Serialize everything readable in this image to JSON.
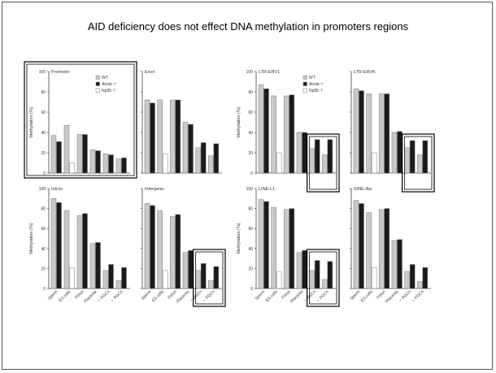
{
  "slide": {
    "title": "AID deficiency does not effect DNA methylation in promoters regions"
  },
  "figure": {
    "ylabel": "Methylation (%)",
    "y_ticks": [
      "0",
      "20",
      "40",
      "60",
      "80",
      "100"
    ],
    "categories": [
      "Sperm",
      "ES cells",
      "Fetus",
      "Placenta",
      "♂ PGCs",
      "♀ PGCs"
    ],
    "legend_wt": "WT",
    "legend_aicda": "Aicda⁻/⁻",
    "legend_np95": "Np95⁻/⁻",
    "colors": {
      "wt": "#c9c9c9",
      "aicda": "#1a1a1a",
      "np95": "#ffffff",
      "outline": "#777777",
      "highlight": "#000000"
    }
  },
  "chart_data": [
    {
      "type": "bar",
      "title": "Promoter",
      "categories": [
        "Sperm",
        "ES cells",
        "Fetus",
        "Placenta",
        "♂ PGCs",
        "♀ PGCs"
      ],
      "ylim": [
        0,
        100
      ],
      "ylabel": "Methylation (%)",
      "series": [
        {
          "name": "WT",
          "values": [
            37,
            47,
            38,
            23,
            19,
            14
          ]
        },
        {
          "name": "Aicda⁻/⁻",
          "values": [
            31,
            null,
            38,
            22,
            18,
            15
          ]
        },
        {
          "name": "Np95⁻/⁻",
          "values": [
            null,
            10,
            null,
            null,
            null,
            null
          ]
        }
      ],
      "show_legend": true,
      "highlight": "panel"
    },
    {
      "type": "bar",
      "title": "Exon",
      "categories": [
        "Sperm",
        "ES cells",
        "Fetus",
        "Placenta",
        "♂ PGCs",
        "♀ PGCs"
      ],
      "ylim": [
        0,
        100
      ],
      "series": [
        {
          "name": "WT",
          "values": [
            72,
            72,
            72,
            50,
            25,
            17
          ]
        },
        {
          "name": "Aicda⁻/⁻",
          "values": [
            69,
            null,
            72,
            48,
            30,
            29
          ]
        },
        {
          "name": "Np95⁻/⁻",
          "values": [
            null,
            19,
            null,
            null,
            null,
            null
          ]
        }
      ],
      "show_legend": false,
      "highlight": "none"
    },
    {
      "type": "bar",
      "title": "LTR-ERV1",
      "categories": [
        "Sperm",
        "ES cells",
        "Fetus",
        "Placenta",
        "♂ PGCs",
        "♀ PGCs"
      ],
      "ylim": [
        0,
        100
      ],
      "ylabel": "Methylation (%)",
      "series": [
        {
          "name": "WT",
          "values": [
            87,
            76,
            76,
            40,
            24,
            18
          ]
        },
        {
          "name": "Aicda⁻/⁻",
          "values": [
            83,
            null,
            77,
            40,
            33,
            33
          ]
        },
        {
          "name": "Np95⁻/⁻",
          "values": [
            null,
            20,
            null,
            null,
            null,
            null
          ]
        }
      ],
      "show_legend": true,
      "highlight": "pgcs"
    },
    {
      "type": "bar",
      "title": "LTR-ERVK",
      "categories": [
        "Sperm",
        "ES cells",
        "Fetus",
        "Placenta",
        "♂ PGCs",
        "♀ PGCs"
      ],
      "ylim": [
        0,
        100
      ],
      "series": [
        {
          "name": "WT",
          "values": [
            83,
            78,
            78,
            40,
            25,
            18
          ]
        },
        {
          "name": "Aicda⁻/⁻",
          "values": [
            81,
            null,
            78,
            41,
            32,
            32
          ]
        },
        {
          "name": "Np95⁻/⁻",
          "values": [
            null,
            20,
            null,
            null,
            null,
            null
          ]
        }
      ],
      "show_legend": false,
      "highlight": "pgcs"
    },
    {
      "type": "bar",
      "title": "Intron",
      "categories": [
        "Sperm",
        "ES cells",
        "Fetus",
        "Placenta",
        "♂ PGCs",
        "♀ PGCs"
      ],
      "ylim": [
        0,
        100
      ],
      "ylabel": "Methylation (%)",
      "series": [
        {
          "name": "WT",
          "values": [
            90,
            78,
            73,
            45,
            18,
            8
          ]
        },
        {
          "name": "Aicda⁻/⁻",
          "values": [
            86,
            null,
            75,
            46,
            24,
            21
          ]
        },
        {
          "name": "Np95⁻/⁻",
          "values": [
            null,
            21,
            null,
            null,
            null,
            null
          ]
        }
      ],
      "show_legend": false,
      "highlight": "none"
    },
    {
      "type": "bar",
      "title": "Intergenic",
      "categories": [
        "Sperm",
        "ES cells",
        "Fetus",
        "Placenta",
        "♂ PGCs",
        "♀ PGCs"
      ],
      "ylim": [
        0,
        100
      ],
      "series": [
        {
          "name": "WT",
          "values": [
            85,
            78,
            72,
            36,
            18,
            8
          ]
        },
        {
          "name": "Aicda⁻/⁻",
          "values": [
            83,
            null,
            74,
            38,
            25,
            22
          ]
        },
        {
          "name": "Np95⁻/⁻",
          "values": [
            null,
            18,
            null,
            null,
            null,
            null
          ]
        }
      ],
      "show_legend": false,
      "highlight": "pgcs"
    },
    {
      "type": "bar",
      "title": "LINE-L1",
      "categories": [
        "Sperm",
        "ES cells",
        "Fetus",
        "Placenta",
        "♂ PGCs",
        "♀ PGCs"
      ],
      "ylim": [
        0,
        100
      ],
      "ylabel": "Methylation (%)",
      "series": [
        {
          "name": "WT",
          "values": [
            89,
            81,
            79,
            36,
            18,
            9
          ]
        },
        {
          "name": "Aicda⁻/⁻",
          "values": [
            87,
            null,
            80,
            38,
            28,
            27
          ]
        },
        {
          "name": "Np95⁻/⁻",
          "values": [
            null,
            17,
            null,
            null,
            null,
            null
          ]
        }
      ],
      "show_legend": false,
      "highlight": "pgcs"
    },
    {
      "type": "bar",
      "title": "SINE-Alu",
      "categories": [
        "Sperm",
        "ES cells",
        "Fetus",
        "Placenta",
        "♂ PGCs",
        "♀ PGCs"
      ],
      "ylim": [
        0,
        100
      ],
      "series": [
        {
          "name": "WT",
          "values": [
            88,
            76,
            79,
            48,
            17,
            7
          ]
        },
        {
          "name": "Aicda⁻/⁻",
          "values": [
            85,
            null,
            80,
            49,
            24,
            21
          ]
        },
        {
          "name": "Np95⁻/⁻",
          "values": [
            null,
            21,
            null,
            null,
            null,
            null
          ]
        }
      ],
      "show_legend": false,
      "highlight": "none"
    }
  ]
}
